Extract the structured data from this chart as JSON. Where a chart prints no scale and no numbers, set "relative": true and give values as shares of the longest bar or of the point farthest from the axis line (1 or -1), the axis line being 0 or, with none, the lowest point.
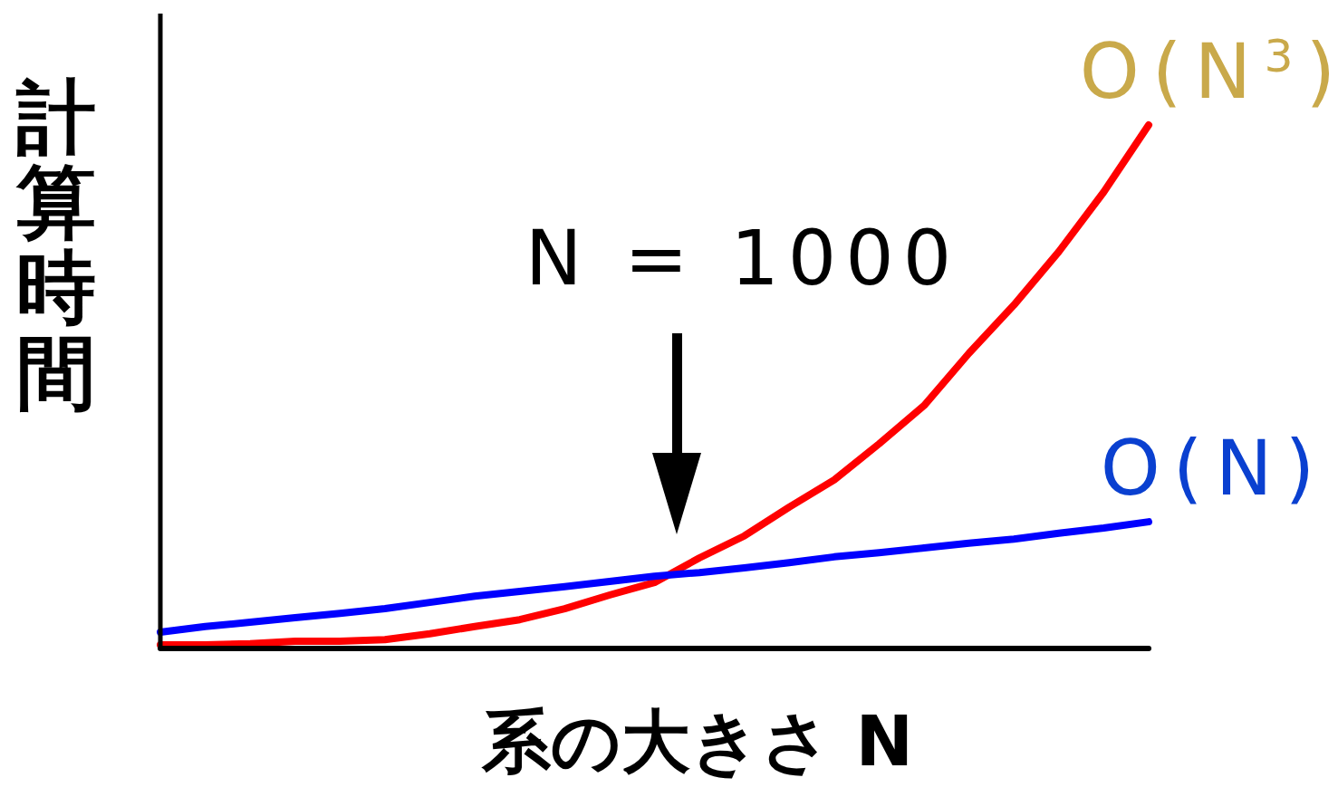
{
  "chart_data": {
    "type": "line",
    "relative": true,
    "xlabel": "系の大きさ N",
    "ylabel": "計算時間",
    "categories": [
      null,
      null,
      null,
      null,
      null,
      null,
      null,
      null,
      null,
      null,
      null,
      null,
      null,
      null,
      null,
      null,
      null,
      null,
      null,
      null,
      null,
      null,
      null
    ],
    "series": [
      {
        "name": "O(N$^{3}$)",
        "color": "#ff0000",
        "values": [
          0.007,
          0.007,
          0.009,
          0.014,
          0.014,
          0.017,
          0.028,
          0.042,
          0.055,
          0.076,
          0.102,
          0.126,
          0.173,
          0.215,
          0.27,
          0.322,
          0.391,
          0.464,
          0.564,
          0.656,
          0.758,
          0.872,
          1.0
        ]
      },
      {
        "name": "O(N)",
        "color": "#0000ff",
        "values": [
          0.031,
          0.042,
          0.05,
          0.059,
          0.067,
          0.076,
          0.088,
          0.1,
          0.109,
          0.118,
          0.128,
          0.138,
          0.145,
          0.154,
          0.164,
          0.175,
          0.183,
          0.192,
          0.201,
          0.209,
          0.22,
          0.23,
          0.242
        ]
      }
    ],
    "annotations": [
      "N = 1000"
    ]
  }
}
